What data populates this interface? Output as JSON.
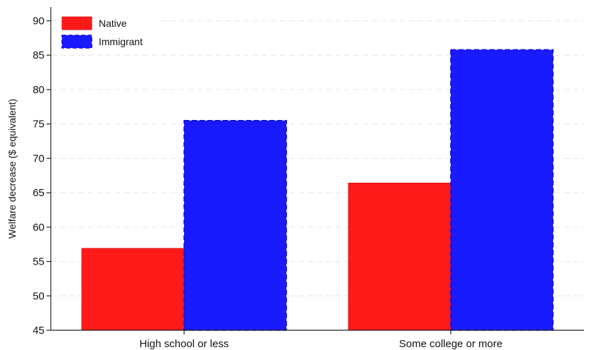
{
  "chart_data": {
    "type": "bar",
    "title": "",
    "xlabel": "",
    "ylabel": "Welfare decrease ($ equivalent)",
    "categories": [
      "High school or less",
      "Some college or more"
    ],
    "series": [
      {
        "name": "Native",
        "values": [
          56.9,
          66.4
        ],
        "color": "#ff1a1a",
        "border": "solid"
      },
      {
        "name": "Immigrant",
        "values": [
          75.5,
          85.8
        ],
        "color": "#1a1aff",
        "border": "dashed"
      }
    ],
    "ylim": [
      45,
      92
    ],
    "yticks": [
      "45",
      "50",
      "55",
      "60",
      "65",
      "70",
      "75",
      "80",
      "85",
      "90"
    ],
    "grid": true,
    "legend": "top-left"
  }
}
